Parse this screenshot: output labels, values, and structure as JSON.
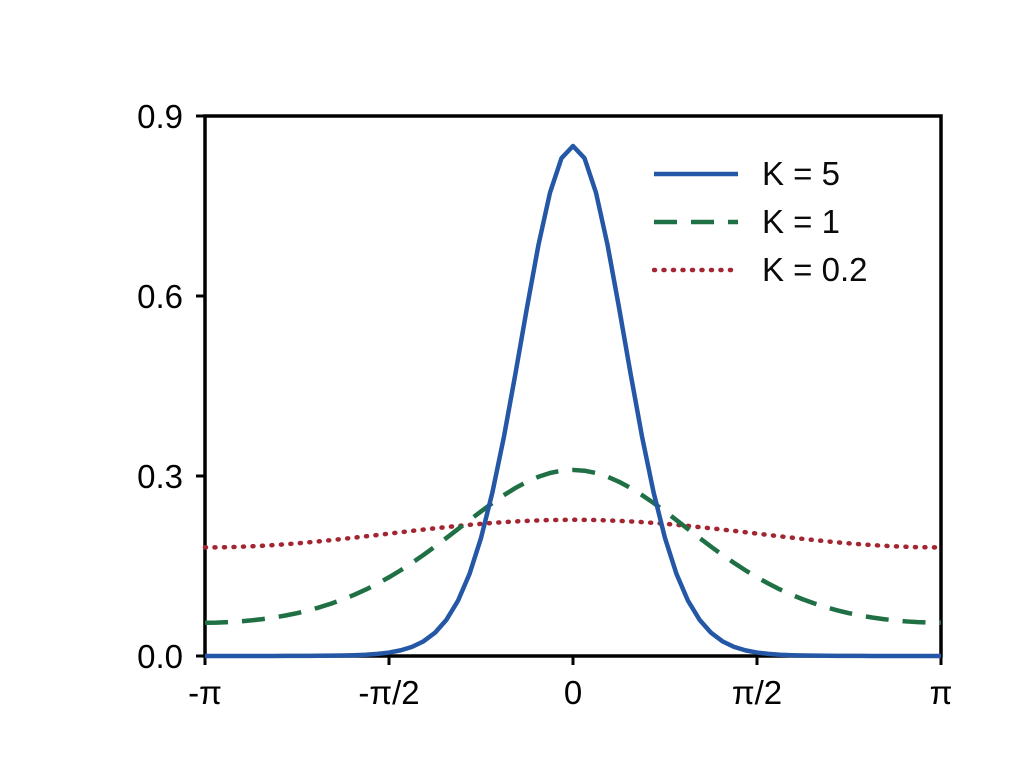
{
  "chart_data": {
    "type": "line",
    "title": "",
    "xlabel": "",
    "ylabel": "",
    "grid": false,
    "frame_color": "#000000",
    "text_color": "#000000",
    "xlim_over_pi": [
      -1,
      1
    ],
    "ylim": [
      0,
      0.9
    ],
    "x_ticks": [
      {
        "pos": -1,
        "label": "-π"
      },
      {
        "pos": -0.5,
        "label": "-π/2"
      },
      {
        "pos": 0,
        "label": "0"
      },
      {
        "pos": 0.5,
        "label": "π/2"
      },
      {
        "pos": 1,
        "label": "π"
      }
    ],
    "y_ticks": [
      {
        "value": 0,
        "label": "0.0"
      },
      {
        "value": 0.3,
        "label": "0.3"
      },
      {
        "value": 0.6,
        "label": "0.6"
      },
      {
        "value": 0.9,
        "label": "0.9"
      }
    ],
    "legend": {
      "position": "upper-right",
      "entries": [
        "K = 5",
        "K = 1",
        "K = 0.2"
      ]
    },
    "x_over_pi": [
      -1,
      -0.9688,
      -0.9375,
      -0.9063,
      -0.875,
      -0.8438,
      -0.8125,
      -0.7813,
      -0.75,
      -0.7188,
      -0.6875,
      -0.6563,
      -0.625,
      -0.5938,
      -0.5625,
      -0.5313,
      -0.5,
      -0.4688,
      -0.4375,
      -0.4063,
      -0.375,
      -0.3438,
      -0.3125,
      -0.2813,
      -0.25,
      -0.2188,
      -0.1875,
      -0.1563,
      -0.125,
      -0.0938,
      -0.0625,
      -0.0313,
      0,
      0.0313,
      0.0625,
      0.0938,
      0.125,
      0.1563,
      0.1875,
      0.2188,
      0.25,
      0.2813,
      0.3125,
      0.3438,
      0.375,
      0.4063,
      0.4375,
      0.4688,
      0.5,
      0.5313,
      0.5625,
      0.5938,
      0.625,
      0.6563,
      0.6875,
      0.7188,
      0.75,
      0.7813,
      0.8125,
      0.8438,
      0.875,
      0.9063,
      0.9375,
      0.9688,
      1
    ],
    "series": [
      {
        "name": "K = 5",
        "style": "solid",
        "color": "#2457a5",
        "values": [
          4e-05,
          4e-05,
          4e-05,
          5e-05,
          6e-05,
          7e-05,
          9e-05,
          0.00012,
          0.00017,
          0.00024,
          0.00036,
          0.00054,
          0.00085,
          0.00134,
          0.00216,
          0.00351,
          0.00573,
          0.00935,
          0.0152,
          0.0244,
          0.0388,
          0.0605,
          0.0921,
          0.1366,
          0.1965,
          0.2732,
          0.366,
          0.471,
          0.5809,
          0.6853,
          0.7722,
          0.8297,
          0.85,
          0.8297,
          0.7722,
          0.6853,
          0.5809,
          0.471,
          0.366,
          0.2732,
          0.1965,
          0.1366,
          0.0921,
          0.0605,
          0.0388,
          0.0244,
          0.0152,
          0.00935,
          0.00573,
          0.00351,
          0.00216,
          0.00134,
          0.00085,
          0.00054,
          0.00036,
          0.00024,
          0.00017,
          0.00012,
          9e-05,
          7e-05,
          6e-05,
          5e-05,
          4e-05,
          4e-05,
          4e-05
        ]
      },
      {
        "name": "K = 1",
        "style": "dashed",
        "color": "#1f7044",
        "values": [
          0.0555,
          0.0557,
          0.0564,
          0.0576,
          0.0593,
          0.0615,
          0.0642,
          0.0675,
          0.0714,
          0.076,
          0.0814,
          0.0875,
          0.0944,
          0.1022,
          0.1109,
          0.1206,
          0.1312,
          0.1427,
          0.1552,
          0.1684,
          0.1823,
          0.1968,
          0.2116,
          0.2264,
          0.241,
          0.2551,
          0.2682,
          0.2801,
          0.2904,
          0.2988,
          0.305,
          0.3088,
          0.3101,
          0.3088,
          0.305,
          0.2988,
          0.2904,
          0.2801,
          0.2682,
          0.2551,
          0.241,
          0.2264,
          0.2116,
          0.1968,
          0.1823,
          0.1684,
          0.1552,
          0.1427,
          0.1312,
          0.1206,
          0.1109,
          0.1022,
          0.0944,
          0.0875,
          0.0814,
          0.076,
          0.0714,
          0.0675,
          0.0642,
          0.0615,
          0.0593,
          0.0576,
          0.0564,
          0.0557,
          0.0555
        ]
      },
      {
        "name": "K = 0.2",
        "style": "dotted",
        "color": "#a32531",
        "values": [
          0.181,
          0.1811,
          0.1814,
          0.182,
          0.1828,
          0.1837,
          0.1849,
          0.1862,
          0.1877,
          0.1894,
          0.1912,
          0.1932,
          0.1952,
          0.1973,
          0.1995,
          0.2017,
          0.204,
          0.2063,
          0.2085,
          0.2107,
          0.2128,
          0.2148,
          0.2168,
          0.2186,
          0.2203,
          0.2218,
          0.2231,
          0.2243,
          0.2252,
          0.226,
          0.2266,
          0.2269,
          0.227,
          0.2269,
          0.2266,
          0.226,
          0.2252,
          0.2243,
          0.2231,
          0.2218,
          0.2203,
          0.2186,
          0.2168,
          0.2148,
          0.2128,
          0.2107,
          0.2085,
          0.2063,
          0.204,
          0.2017,
          0.1995,
          0.1973,
          0.1952,
          0.1932,
          0.1912,
          0.1894,
          0.1877,
          0.1862,
          0.1849,
          0.1837,
          0.1828,
          0.182,
          0.1814,
          0.1811,
          0.181
        ]
      }
    ]
  }
}
